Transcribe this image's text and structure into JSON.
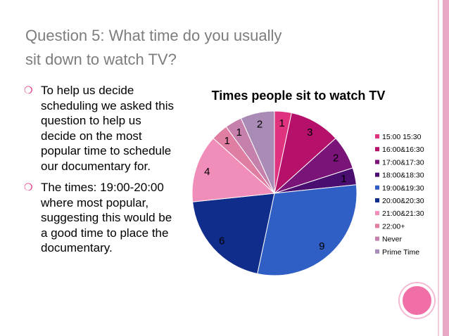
{
  "slide": {
    "title_line1": "Question 5: What time do you usually",
    "title_line2": "sit down to watch TV?",
    "bullets": [
      "To help us decide scheduling we asked this question to help us decide on the most popular time to schedule our documentary for.",
      "The times: 19:00-20:00 where most popular, suggesting this would be a good time to place the documentary."
    ],
    "bullet_icon": "hollow-circle-bullet-icon"
  },
  "colors": {
    "title": "#7d7d7d",
    "bullet": "#e4277d",
    "accent_bar": "#e9a9c6",
    "corner_dot": "#f06fa7"
  },
  "chart_data": {
    "type": "pie",
    "title": "Times people sit to watch TV",
    "categories": [
      "15:00 15:30",
      "16:00&16:30",
      "17:00&17:30",
      "18:00&18:30",
      "19:00&19:30",
      "20:00&20:30",
      "21:00&21:30",
      "22:00+",
      "Never",
      "Prime Time"
    ],
    "values": [
      1,
      3,
      2,
      1,
      9,
      6,
      4,
      1,
      1,
      2
    ],
    "colors": [
      "#e0337f",
      "#b5116a",
      "#7a1478",
      "#4a0d70",
      "#2f5fc4",
      "#112d8c",
      "#f08db8",
      "#e07da3",
      "#c680ac",
      "#a98bb5"
    ],
    "data_labels": true,
    "legend_position": "right"
  }
}
